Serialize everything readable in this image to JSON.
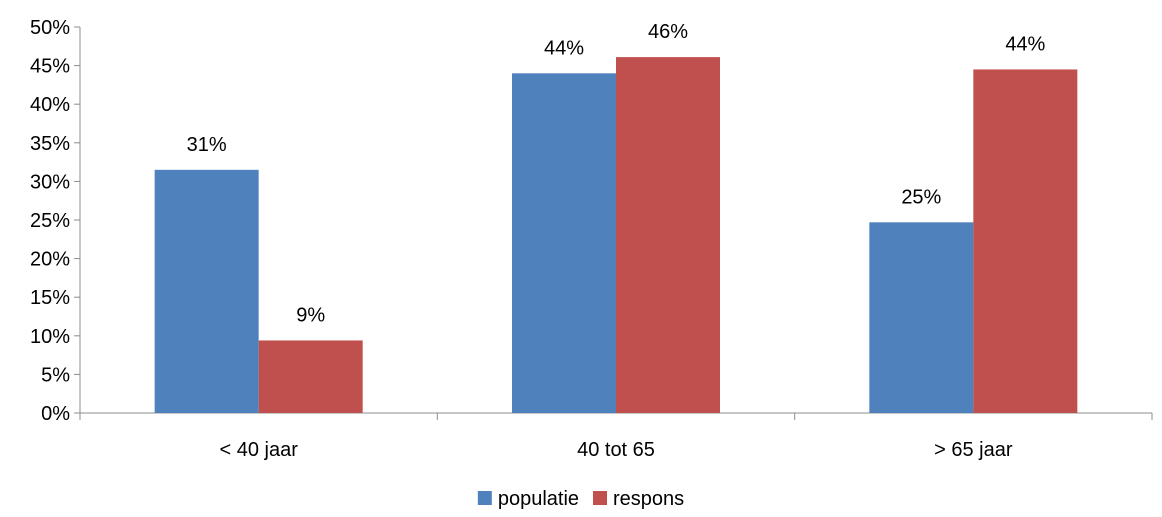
{
  "chart_data": {
    "type": "bar",
    "title": "",
    "xlabel": "",
    "ylabel": "",
    "categories": [
      "< 40 jaar",
      "40 tot 65",
      "> 65 jaar"
    ],
    "series": [
      {
        "name": "populatie",
        "color": "#4F81BD",
        "values": [
          0.315,
          0.44,
          0.247
        ],
        "labels": [
          "31%",
          "44%",
          "25%"
        ]
      },
      {
        "name": "respons",
        "color": "#C0504D",
        "values": [
          0.094,
          0.461,
          0.445
        ],
        "labels": [
          "9%",
          "46%",
          "44%"
        ]
      }
    ],
    "ylim": [
      0,
      0.5
    ],
    "ytick_values": [
      0,
      0.05,
      0.1,
      0.15,
      0.2,
      0.25,
      0.3,
      0.35,
      0.4,
      0.45,
      0.5
    ],
    "ytick_labels": [
      "0%",
      "5%",
      "10%",
      "15%",
      "20%",
      "25%",
      "30%",
      "35%",
      "40%",
      "45%",
      "50%"
    ],
    "grid": false,
    "legend_position": "bottom"
  }
}
